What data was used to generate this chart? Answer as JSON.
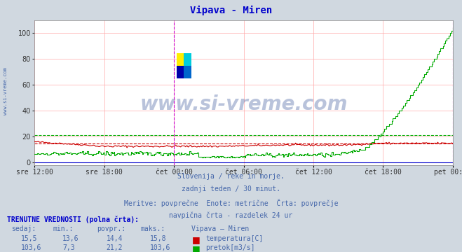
{
  "title": "Vipava - Miren",
  "title_color": "#0000cc",
  "bg_color": "#d0d8e0",
  "plot_bg_color": "#ffffff",
  "grid_color": "#ffaaaa",
  "xlabel_ticks": [
    "sre 12:00",
    "sre 18:00",
    "čet 00:00",
    "čet 06:00",
    "čet 12:00",
    "čet 18:00",
    "pet 00:00"
  ],
  "n_points": 336,
  "ylim": [
    -2,
    110
  ],
  "yticks": [
    0,
    20,
    40,
    60,
    80,
    100
  ],
  "temp_color": "#cc0000",
  "flow_color": "#00aa00",
  "avg_temp": 14.4,
  "avg_flow": 21.2,
  "vline_color": "#cc00cc",
  "watermark": "www.si-vreme.com",
  "watermark_color": "#1a3a8a",
  "watermark_alpha": 0.3,
  "subtitle_lines": [
    "Slovenija / reke in morje.",
    "zadnji teden / 30 minut.",
    "Meritve: povprečne  Enote: metrične  Črta: povprečje",
    "navpična črta - razdelek 24 ur"
  ],
  "subtitle_color": "#4466aa",
  "table_header_color": "#0000cc",
  "table_label_color": "#4466aa",
  "table_data_color": "#4466aa"
}
